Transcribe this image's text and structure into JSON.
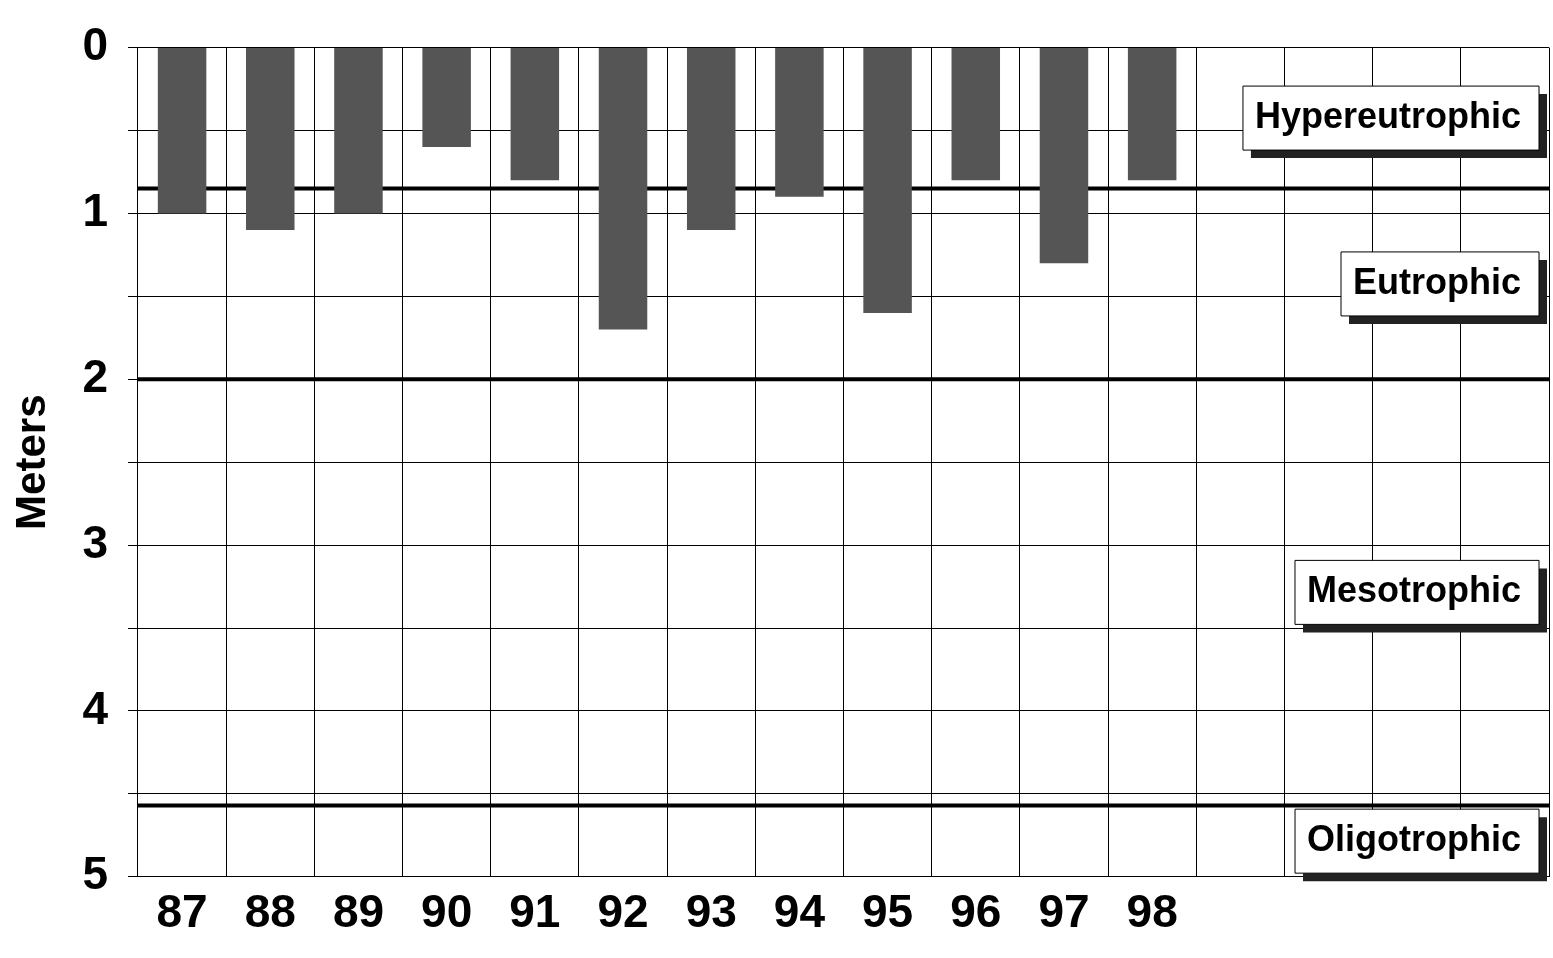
{
  "chart_data": {
    "type": "bar",
    "ylabel": "Meters",
    "categories": [
      "87",
      "88",
      "89",
      "90",
      "91",
      "92",
      "93",
      "94",
      "95",
      "96",
      "97",
      "98",
      null,
      null,
      null,
      null
    ],
    "values": [
      1.0,
      1.1,
      1.0,
      0.6,
      0.8,
      1.7,
      1.1,
      0.9,
      1.6,
      0.8,
      1.3,
      0.8,
      null,
      null,
      null,
      null
    ],
    "color": "#555555",
    "ylim": [
      5,
      0
    ],
    "yticks": [
      0,
      {
        "value": 0.5,
        "label": null
      },
      1,
      {
        "value": 1.5,
        "label": null
      },
      2,
      {
        "value": 2.5,
        "label": null
      },
      3,
      {
        "value": 3.5,
        "label": null
      },
      4,
      {
        "value": 4.5,
        "label": null
      },
      5
    ],
    "grid": true,
    "ref_lines": [
      {
        "axis": "y",
        "value": 0.85
      },
      {
        "axis": "y",
        "value": 2
      },
      {
        "axis": "y",
        "value": 4.57
      }
    ],
    "annotations": [
      "Hypereutrophic",
      "Eutrophic",
      "Mesotrophic",
      "Oligotrophic"
    ]
  }
}
